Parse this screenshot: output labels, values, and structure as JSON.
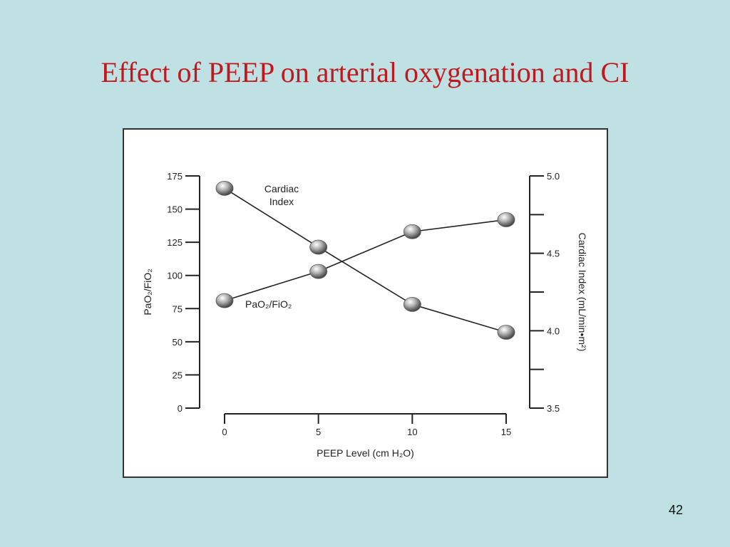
{
  "slide": {
    "title": "Effect of PEEP on arterial oxygenation and CI",
    "page_number": "42",
    "background": "#bfe1e4",
    "title_color": "#c0181c"
  },
  "chart_data": {
    "type": "line",
    "x": [
      0,
      5,
      10,
      15
    ],
    "xlabel": "PEEP Level (cm H₂O)",
    "xticks": [
      0,
      5,
      10,
      15
    ],
    "y_left": {
      "label": "PaO₂/FiO₂",
      "ylim": [
        0,
        175
      ],
      "ticks": [
        0,
        25,
        50,
        75,
        100,
        125,
        150,
        175
      ]
    },
    "y_right": {
      "label": "Cardiac Index (mL/min•m²)",
      "ylim": [
        3.5,
        5.0
      ],
      "ticks": [
        3.5,
        4.0,
        4.5,
        5.0
      ]
    },
    "series": [
      {
        "name": "Cardiac Index",
        "axis": "right",
        "values": [
          4.92,
          4.54,
          4.17,
          3.99
        ],
        "label_lines": [
          "Cardiac",
          "Index"
        ]
      },
      {
        "name": "PaO₂/FiO₂",
        "axis": "left",
        "values": [
          81,
          103,
          133,
          142
        ]
      }
    ],
    "grid": false,
    "marker_color": "#9a9a9a"
  }
}
